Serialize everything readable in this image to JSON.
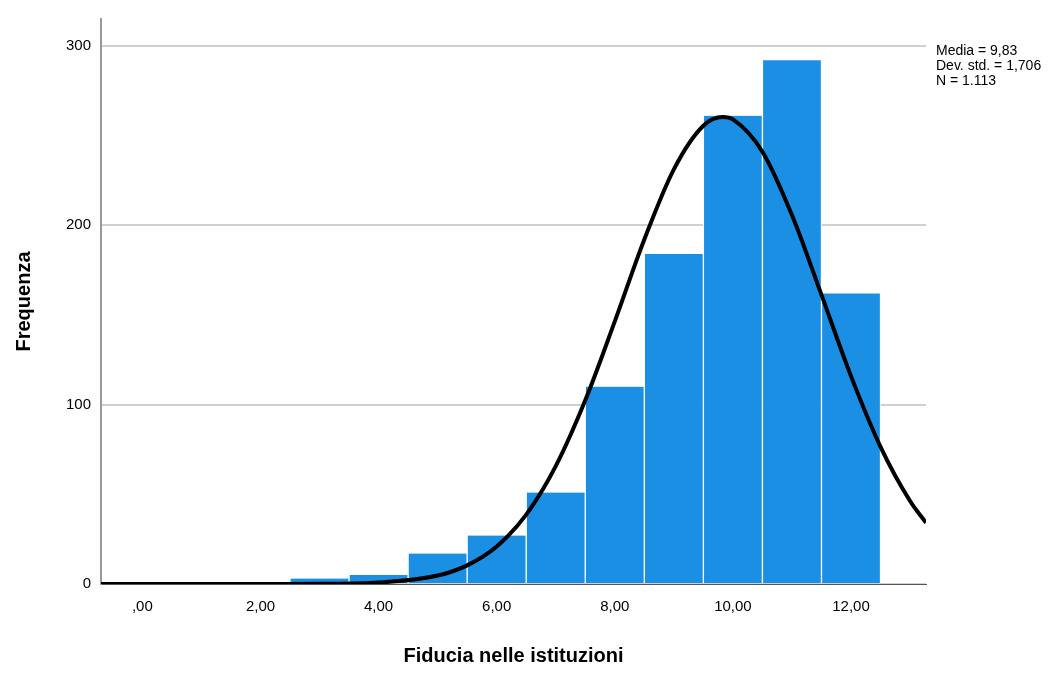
{
  "chart_data": {
    "type": "histogram",
    "xlabel": "Fiducia nelle istituzioni",
    "ylabel": "Frequenza",
    "bins": [
      2.5,
      3.5,
      4.5,
      5.5,
      6.5,
      7.5,
      8.5,
      9.5,
      10.5,
      11.5,
      12.5
    ],
    "values": [
      3,
      5,
      17,
      27,
      51,
      110,
      184,
      261,
      292,
      162
    ],
    "color": "#1a8fe3",
    "series": [
      {
        "type": "line",
        "color": "#000000",
        "x": [
          -0.7,
          0,
          1,
          2,
          3,
          4,
          5,
          5.5,
          6,
          6.5,
          7,
          7.5,
          8,
          8.5,
          9,
          9.5,
          9.83,
          10,
          10.5,
          11,
          11.5,
          12,
          12.5,
          13,
          13.27
        ],
        "values": [
          0,
          0,
          0,
          0,
          0.1,
          0.8,
          4.7,
          10.4,
          20.9,
          38.7,
          65.7,
          102.4,
          146.4,
          192.1,
          231.2,
          255.5,
          260.3,
          259,
          241,
          205.7,
          161.2,
          115.9,
          76.5,
          46.3,
          34.1
        ]
      }
    ],
    "xlim": [
      -0.7,
      13.27
    ],
    "xticks": [
      {
        "value": 0,
        "label": ",00"
      },
      {
        "value": 2,
        "label": "2,00"
      },
      {
        "value": 4,
        "label": "4,00"
      },
      {
        "value": 6,
        "label": "6,00"
      },
      {
        "value": 8,
        "label": "8,00"
      },
      {
        "value": 10,
        "label": "10,00"
      },
      {
        "value": 12,
        "label": "12,00"
      }
    ],
    "ylim": [
      0,
      315
    ],
    "yticks": [
      0,
      100,
      200,
      300
    ],
    "grid": "y",
    "legend": false,
    "annotations": [
      "Media = 9,83",
      "Dev. std. = 1,706",
      "N = 1.113"
    ]
  }
}
